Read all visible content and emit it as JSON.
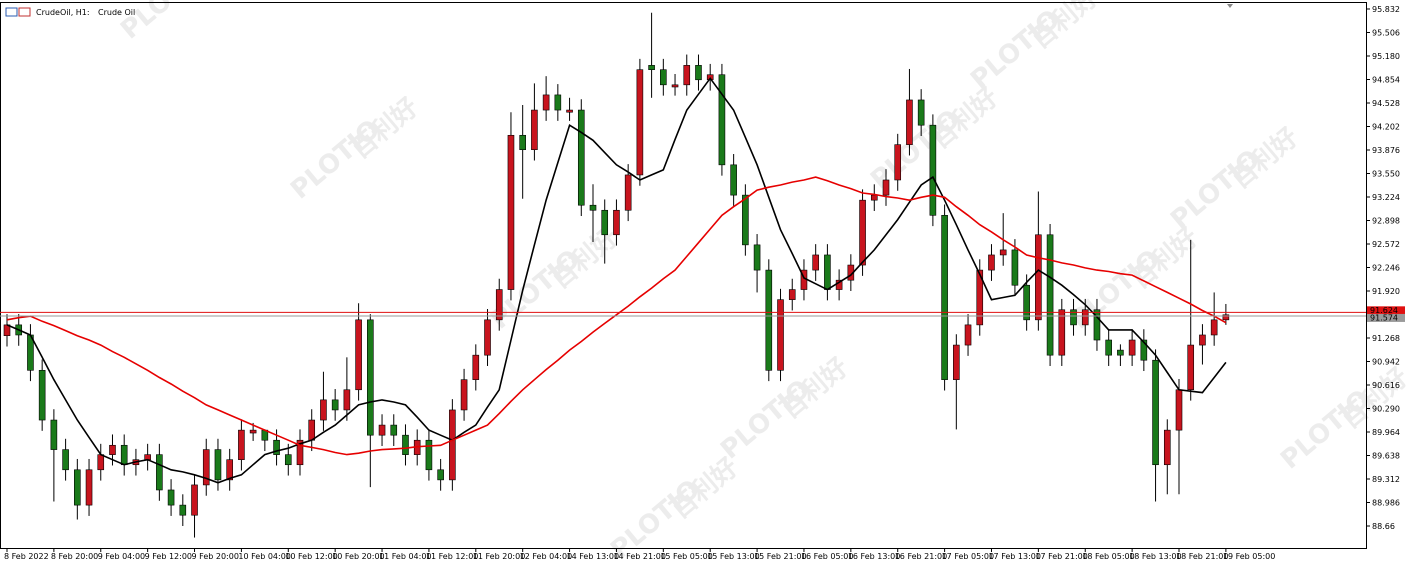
{
  "chart_data": {
    "type": "candlestick",
    "symbol": "CrudeOil, H1:",
    "description": "Crude Oil",
    "watermark": "PLOTIO",
    "watermark_cn": "百利好",
    "categories": [
      "8 Feb 2022",
      null,
      null,
      null,
      "8 Feb 20:00",
      null,
      null,
      null,
      "9 Feb 04:00",
      null,
      null,
      null,
      "9 Feb 12:00",
      null,
      null,
      null,
      "9 Feb 20:00",
      null,
      null,
      null,
      "10 Feb 04:00",
      null,
      null,
      null,
      "10 Feb 12:00",
      null,
      null,
      null,
      "10 Feb 20:00",
      null,
      null,
      null,
      "11 Feb 04:00",
      null,
      null,
      null,
      "11 Feb 12:00",
      null,
      null,
      null,
      "11 Feb 20:00",
      null,
      null,
      null,
      "12 Feb 04:00",
      null,
      null,
      null,
      "14 Feb 13:00",
      null,
      null,
      null,
      "14 Feb 21:00",
      null,
      null,
      null,
      "15 Feb 05:00",
      null,
      null,
      null,
      "15 Feb 13:00",
      null,
      null,
      null,
      "15 Feb 21:00",
      null,
      null,
      null,
      "16 Feb 05:00",
      null,
      null,
      null,
      "16 Feb 13:00",
      null,
      null,
      null,
      "16 Feb 21:00",
      null,
      null,
      null,
      "17 Feb 05:00",
      null,
      null,
      null,
      "17 Feb 13:00",
      null,
      null,
      null,
      "17 Feb 21:00",
      null,
      null,
      null,
      "18 Feb 05:00",
      null,
      null,
      null,
      "18 Feb 13:00",
      null,
      null,
      null,
      "18 Feb 21:00",
      null,
      null,
      null,
      "19 Feb 05:00"
    ],
    "open": [
      91.3,
      91.45,
      91.31,
      90.82,
      90.13,
      89.72,
      89.44,
      88.95,
      89.44,
      89.65,
      89.78,
      89.51,
      89.58,
      89.65,
      89.16,
      88.95,
      88.81,
      89.23,
      89.72,
      89.3,
      89.58,
      89.95,
      89.99,
      89.85,
      89.65,
      89.51,
      89.85,
      90.13,
      90.41,
      90.27,
      90.55,
      91.52,
      89.92,
      90.06,
      89.92,
      89.65,
      89.85,
      89.44,
      89.3,
      90.27,
      90.69,
      91.03,
      91.52,
      91.94,
      94.08,
      93.88,
      94.43,
      94.64,
      94.4,
      94.43,
      93.11,
      93.04,
      92.7,
      93.04,
      93.53,
      95.05,
      94.99,
      94.75,
      94.78,
      95.05,
      94.85,
      94.92,
      93.67,
      93.25,
      92.56,
      92.21,
      90.82,
      91.8,
      91.94,
      92.21,
      92.42,
      91.94,
      92.07,
      92.28,
      93.18,
      93.25,
      93.46,
      93.95,
      94.57,
      94.22,
      92.97,
      90.69,
      91.17,
      91.45,
      92.21,
      92.42,
      92.49,
      92.0,
      91.52,
      92.7,
      91.03,
      91.66,
      91.45,
      91.66,
      91.24,
      91.1,
      91.03,
      91.24,
      90.96,
      89.51,
      89.99,
      90.55,
      91.17,
      91.31,
      91.52
    ],
    "high": [
      91.6,
      91.6,
      91.46,
      90.97,
      90.28,
      89.87,
      89.59,
      89.59,
      89.8,
      89.93,
      89.93,
      89.73,
      89.8,
      89.8,
      89.31,
      89.1,
      89.38,
      89.87,
      89.87,
      89.73,
      90.14,
      90.09,
      90.0,
      90.0,
      89.8,
      90.0,
      90.28,
      90.8,
      90.56,
      91.0,
      91.75,
      91.6,
      90.21,
      90.21,
      90.07,
      90.0,
      90.0,
      89.59,
      90.42,
      90.84,
      91.18,
      91.67,
      92.09,
      94.4,
      94.5,
      94.8,
      94.9,
      94.79,
      94.6,
      94.58,
      93.4,
      93.19,
      93.19,
      93.68,
      95.14,
      95.78,
      95.14,
      94.93,
      95.2,
      95.2,
      95.07,
      95.07,
      93.82,
      93.4,
      92.71,
      92.36,
      91.95,
      92.09,
      92.36,
      92.57,
      92.57,
      92.22,
      92.43,
      93.33,
      93.4,
      93.61,
      94.1,
      95.0,
      94.72,
      94.37,
      93.12,
      91.32,
      91.6,
      92.36,
      92.57,
      93.0,
      92.64,
      92.15,
      93.3,
      92.85,
      91.81,
      91.81,
      91.81,
      91.81,
      91.39,
      91.18,
      91.39,
      91.39,
      91.11,
      90.14,
      90.7,
      92.63,
      91.46,
      91.9,
      91.74
    ],
    "low": [
      91.15,
      91.16,
      90.67,
      89.98,
      89.0,
      89.29,
      88.75,
      88.8,
      89.29,
      89.5,
      89.36,
      89.36,
      89.43,
      89.01,
      88.8,
      88.66,
      88.5,
      89.08,
      89.15,
      89.15,
      89.43,
      89.84,
      89.7,
      89.5,
      89.36,
      89.36,
      89.7,
      89.98,
      90.12,
      90.12,
      90.4,
      89.2,
      89.77,
      89.77,
      89.5,
      89.5,
      89.29,
      89.15,
      89.15,
      90.12,
      90.54,
      90.88,
      91.37,
      91.79,
      93.2,
      93.73,
      94.28,
      94.28,
      94.28,
      92.96,
      92.6,
      92.3,
      92.55,
      92.89,
      93.38,
      94.6,
      94.63,
      94.63,
      94.63,
      94.7,
      94.7,
      93.52,
      93.1,
      92.41,
      91.9,
      90.67,
      90.67,
      91.65,
      91.79,
      92.06,
      91.79,
      91.79,
      91.92,
      92.13,
      93.03,
      93.1,
      93.31,
      93.8,
      94.07,
      92.82,
      90.54,
      90.0,
      91.02,
      91.3,
      92.06,
      92.27,
      91.85,
      91.37,
      91.37,
      90.88,
      90.88,
      91.3,
      91.3,
      91.09,
      90.88,
      90.88,
      90.88,
      90.81,
      89.0,
      89.1,
      89.1,
      90.4,
      90.9,
      91.16,
      91.45
    ],
    "close": [
      91.45,
      91.31,
      90.82,
      90.13,
      89.72,
      89.44,
      88.95,
      89.44,
      89.65,
      89.78,
      89.51,
      89.58,
      89.65,
      89.16,
      88.95,
      88.81,
      89.23,
      89.72,
      89.3,
      89.58,
      89.99,
      89.99,
      89.85,
      89.65,
      89.51,
      89.85,
      90.13,
      90.41,
      90.27,
      90.55,
      91.52,
      89.92,
      90.06,
      89.92,
      89.65,
      89.85,
      89.44,
      89.3,
      90.27,
      90.69,
      91.03,
      91.52,
      91.94,
      94.08,
      93.88,
      94.43,
      94.64,
      94.43,
      94.43,
      93.11,
      93.04,
      92.7,
      93.04,
      93.53,
      94.99,
      94.99,
      94.78,
      94.78,
      95.05,
      94.85,
      94.92,
      93.67,
      93.25,
      92.56,
      92.21,
      90.82,
      91.8,
      91.94,
      92.21,
      92.42,
      91.94,
      92.07,
      92.28,
      93.18,
      93.25,
      93.46,
      93.95,
      94.57,
      94.22,
      92.97,
      90.69,
      91.17,
      91.45,
      92.21,
      92.42,
      92.49,
      92.0,
      91.52,
      92.7,
      91.03,
      91.66,
      91.45,
      91.66,
      91.24,
      91.03,
      91.03,
      91.24,
      90.96,
      89.51,
      89.99,
      90.55,
      91.17,
      91.31,
      91.52,
      91.59
    ],
    "up_color": "#c8141e",
    "down_color": "#1a7a1a",
    "series": [
      {
        "color": "#000000",
        "values": [
          91.45,
          91.38,
          91.31,
          91.0,
          90.69,
          90.41,
          90.13,
          89.89,
          89.65,
          89.58,
          89.51,
          89.55,
          89.58,
          89.51,
          89.44,
          89.41,
          89.37,
          89.32,
          89.26,
          89.32,
          89.37,
          89.51,
          89.65,
          89.7,
          89.74,
          89.8,
          89.85,
          89.96,
          90.06,
          90.2,
          90.34,
          90.38,
          90.41,
          90.38,
          90.34,
          90.17,
          89.99,
          89.92,
          89.85,
          89.96,
          90.06,
          90.31,
          90.55,
          91.24,
          91.93,
          92.56,
          93.18,
          93.7,
          94.22,
          94.12,
          94.01,
          93.84,
          93.67,
          93.57,
          93.46,
          93.53,
          93.6,
          94.02,
          94.43,
          94.65,
          94.87,
          94.65,
          94.43,
          94.05,
          93.67,
          93.22,
          92.77,
          92.44,
          92.1,
          92.02,
          91.94,
          92.04,
          92.14,
          92.32,
          92.49,
          92.7,
          92.91,
          93.15,
          93.39,
          93.5,
          93.18,
          92.84,
          92.49,
          92.15,
          91.8,
          91.83,
          91.86,
          92.04,
          92.21,
          92.11,
          92.0,
          91.87,
          91.73,
          91.56,
          91.38,
          91.38,
          91.38,
          91.21,
          91.03,
          90.79,
          90.55,
          90.53,
          90.51,
          90.72,
          90.93
        ]
      },
      {
        "color": "#e60000",
        "values": [
          91.52,
          91.55,
          91.57,
          91.5,
          91.44,
          91.37,
          91.3,
          91.24,
          91.17,
          91.08,
          91.0,
          90.91,
          90.82,
          90.72,
          90.63,
          90.53,
          90.44,
          90.34,
          90.27,
          90.2,
          90.13,
          90.06,
          89.99,
          89.92,
          89.85,
          89.78,
          89.75,
          89.72,
          89.68,
          89.65,
          89.67,
          89.7,
          89.72,
          89.73,
          89.74,
          89.76,
          89.77,
          89.78,
          89.85,
          89.92,
          89.99,
          90.06,
          90.22,
          90.39,
          90.55,
          90.69,
          90.83,
          90.96,
          91.1,
          91.22,
          91.35,
          91.47,
          91.59,
          91.71,
          91.84,
          91.96,
          92.09,
          92.21,
          92.4,
          92.59,
          92.78,
          92.97,
          93.09,
          93.2,
          93.32,
          93.36,
          93.39,
          93.43,
          93.46,
          93.5,
          93.45,
          93.39,
          93.34,
          93.28,
          93.26,
          93.23,
          93.21,
          93.18,
          93.22,
          93.25,
          93.22,
          93.09,
          92.97,
          92.84,
          92.74,
          92.63,
          92.53,
          92.42,
          92.38,
          92.35,
          92.31,
          92.28,
          92.24,
          92.21,
          92.19,
          92.16,
          92.14,
          92.06,
          91.98,
          91.9,
          91.82,
          91.74,
          91.65,
          91.57,
          91.48
        ]
      }
    ],
    "price_lines": [
      {
        "value": 91.624,
        "color": "#e01010"
      },
      {
        "value": 91.574,
        "color": "#9a9a9a"
      }
    ],
    "ylim": [
      88.355,
      95.915
    ],
    "yticks": [
      88.66,
      88.986,
      89.312,
      89.638,
      89.964,
      {
        "value": 90.29,
        "label": "90.290"
      },
      90.616,
      90.942,
      91.268,
      {
        "value": 91.92,
        "label": "91.920"
      },
      92.246,
      92.572,
      92.898,
      93.224,
      {
        "value": 93.55,
        "label": "93.550"
      },
      93.876,
      94.202,
      94.528,
      94.854,
      {
        "value": 95.18,
        "label": "95.180"
      },
      95.506,
      95.832
    ]
  }
}
